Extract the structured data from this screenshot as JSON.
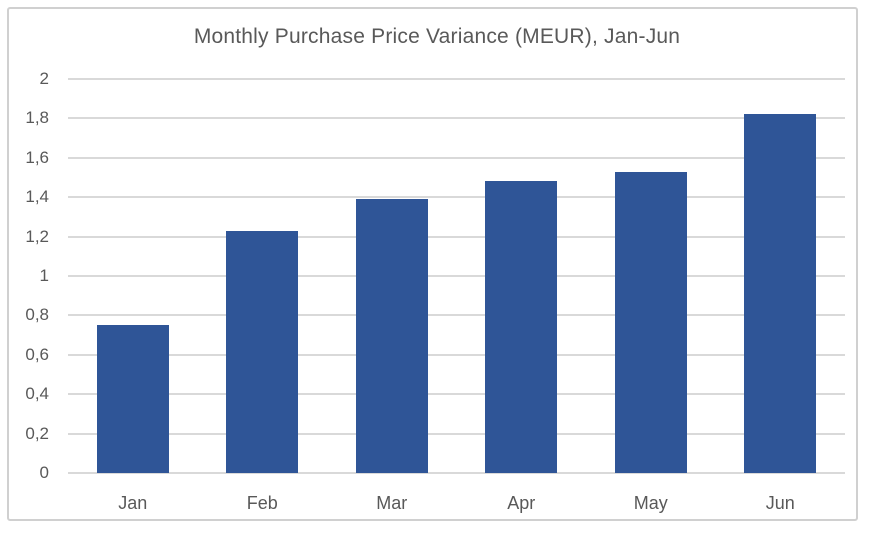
{
  "chart_data": {
    "type": "bar",
    "title": "Monthly Purchase Price Variance (MEUR), Jan-Jun",
    "categories": [
      "Jan",
      "Feb",
      "Mar",
      "Apr",
      "May",
      "Jun"
    ],
    "values": [
      0.75,
      1.23,
      1.39,
      1.48,
      1.53,
      1.82
    ],
    "xlabel": "",
    "ylabel": "",
    "ylim": [
      0,
      2
    ],
    "ytick_step": 0.2,
    "ytick_labels": [
      "0",
      "0,2",
      "0,4",
      "0,6",
      "0,8",
      "1",
      "1,2",
      "1,4",
      "1,6",
      "1,8",
      "2"
    ],
    "decimal_separator": ",",
    "grid": true,
    "legend": "none",
    "bar_color": "#2F5597"
  },
  "colors": {
    "bar": "#2F5597",
    "gridline": "#D9D9D9",
    "axis_text": "#595959",
    "title_text": "#595959",
    "frame_border": "#D0D0D0",
    "background": "#FFFFFF"
  }
}
